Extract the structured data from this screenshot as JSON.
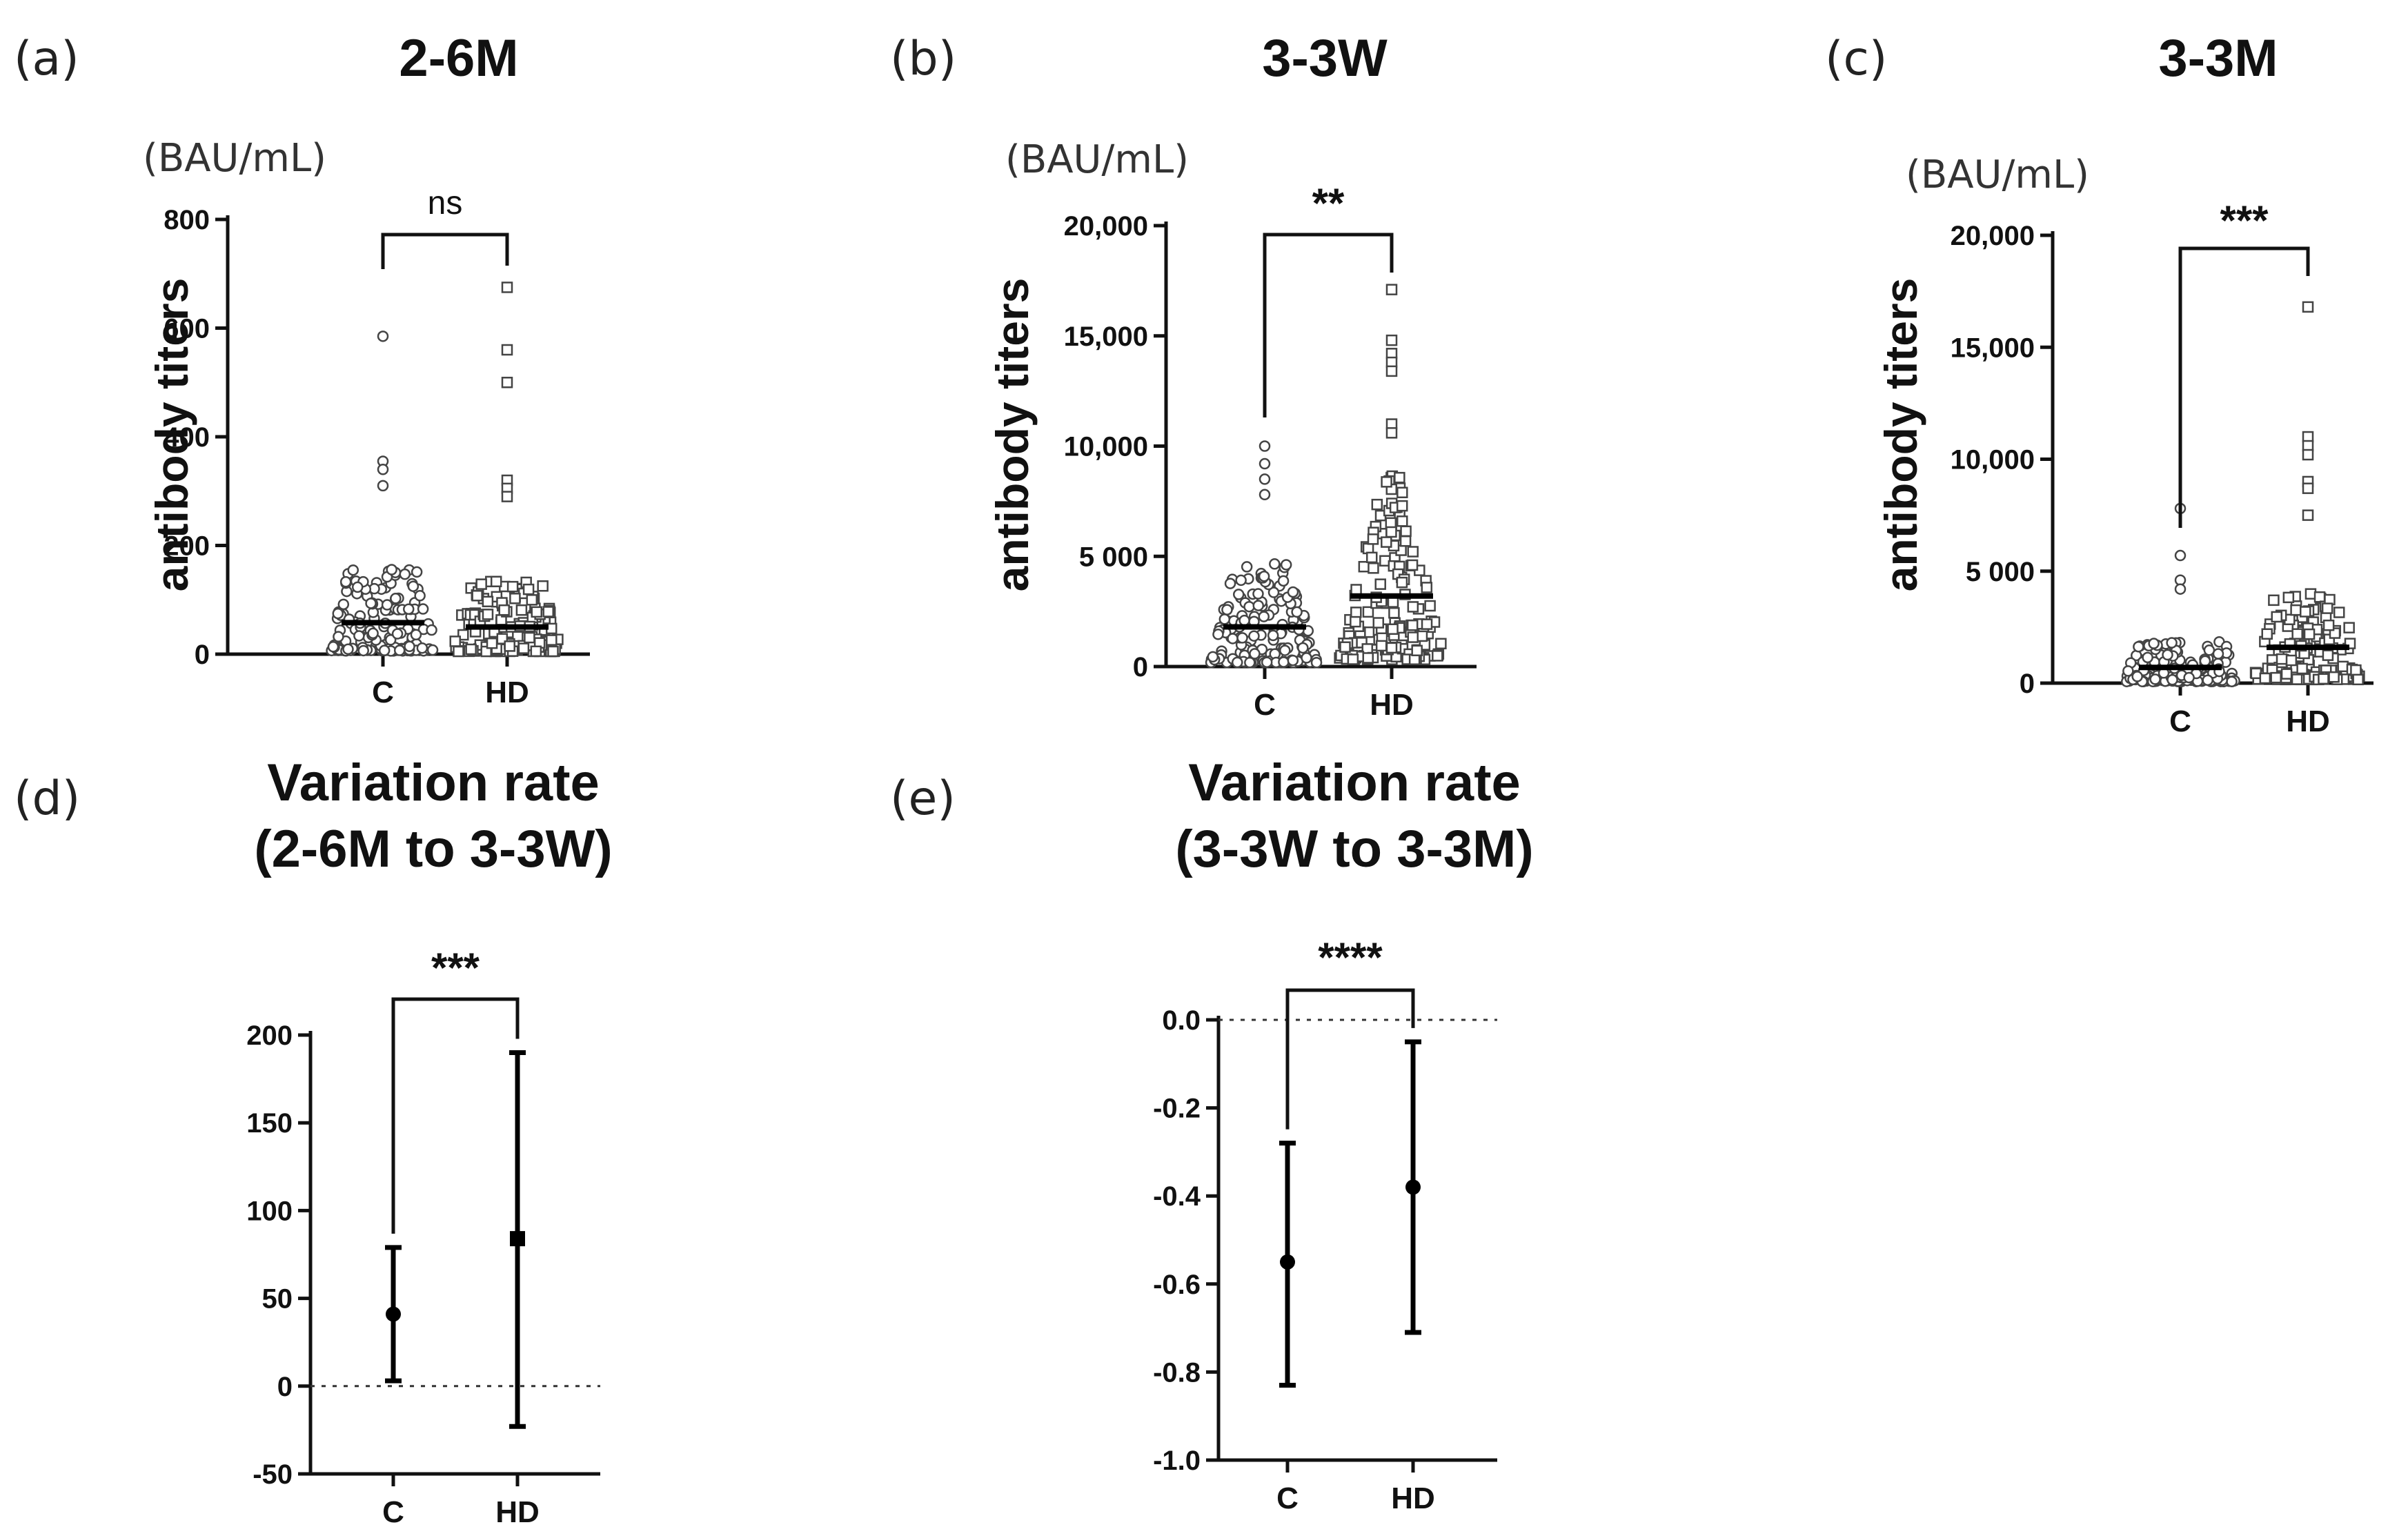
{
  "chart_data": [
    {
      "id": "a",
      "panel_label": "(a)",
      "title": "2-6M",
      "type": "scatter",
      "unit_label": "(BAU/mL)",
      "ylabel": "antibody titers",
      "ylim": [
        0,
        800
      ],
      "yticks": [
        0,
        200,
        400,
        600,
        800
      ],
      "ytick_labels": [
        "0",
        "200",
        "400",
        "600",
        "800"
      ],
      "categories": [
        "C",
        "HD"
      ],
      "median": [
        58,
        50
      ],
      "outliers": [
        [
          585,
          355,
          340,
          310
        ],
        [
          675,
          560,
          500,
          320,
          305,
          290
        ]
      ],
      "significance": "ns",
      "marker_shapes": [
        "circle",
        "square"
      ]
    },
    {
      "id": "b",
      "panel_label": "(b)",
      "title": "3-3W",
      "type": "scatter",
      "unit_label": "(BAU/mL)",
      "ylabel": "antibody titers",
      "ylim": [
        0,
        20000
      ],
      "yticks": [
        0,
        5000,
        10000,
        15000,
        20000
      ],
      "ytick_labels": [
        "0",
        "5 000",
        "10,000",
        "15,000",
        "20,000"
      ],
      "categories": [
        "C",
        "HD"
      ],
      "median": [
        1800,
        3200
      ],
      "outliers": [
        [
          10000,
          9200,
          8500,
          7800
        ],
        [
          17100,
          14800,
          14200,
          13800,
          13400,
          11000,
          10600
        ]
      ],
      "significance": "**",
      "marker_shapes": [
        "circle",
        "square"
      ]
    },
    {
      "id": "c",
      "panel_label": "(c)",
      "title": "3-3M",
      "type": "scatter",
      "unit_label": "(BAU/mL)",
      "ylabel": "antibody titers",
      "ylim": [
        0,
        20000
      ],
      "yticks": [
        0,
        5000,
        10000,
        15000,
        20000
      ],
      "ytick_labels": [
        "0",
        "5 000",
        "10,000",
        "15,000",
        "20,000"
      ],
      "categories": [
        "C",
        "HD"
      ],
      "median": [
        700,
        1600
      ],
      "outliers": [
        [
          7800,
          5700,
          4600,
          4200
        ],
        [
          16800,
          11000,
          10600,
          10200,
          9000,
          8700,
          7500
        ]
      ],
      "significance": "***",
      "marker_shapes": [
        "circle",
        "square"
      ]
    },
    {
      "id": "d",
      "panel_label": "(d)",
      "title_lines": [
        "Variation rate",
        "(2-6M to 3-3W)"
      ],
      "type": "errorbar",
      "ylim": [
        -50,
        200
      ],
      "yticks": [
        -50,
        0,
        50,
        100,
        150,
        200
      ],
      "ytick_labels": [
        "-50",
        "0",
        "50",
        "100",
        "150",
        "200"
      ],
      "categories": [
        "C",
        "HD"
      ],
      "values": [
        41,
        84
      ],
      "lower": [
        3,
        -23
      ],
      "upper": [
        79,
        190
      ],
      "reference_line": 0,
      "significance": "***",
      "marker_shapes": [
        "circle",
        "square"
      ]
    },
    {
      "id": "e",
      "panel_label": "(e)",
      "title_lines": [
        "Variation rate",
        "(3-3W to 3-3M)"
      ],
      "type": "errorbar",
      "ylim": [
        -1.0,
        0.0
      ],
      "yticks": [
        -1.0,
        -0.8,
        -0.6,
        -0.4,
        -0.2,
        0.0
      ],
      "ytick_labels": [
        "-1.0",
        "-0.8",
        "-0.6",
        "-0.4",
        "-0.2",
        "0.0"
      ],
      "categories": [
        "C",
        "HD"
      ],
      "values": [
        -0.55,
        -0.38
      ],
      "lower": [
        -0.83,
        -0.71
      ],
      "upper": [
        -0.28,
        -0.05
      ],
      "reference_line": 0,
      "significance": "****",
      "marker_shapes": [
        "circle",
        "circle"
      ]
    }
  ]
}
